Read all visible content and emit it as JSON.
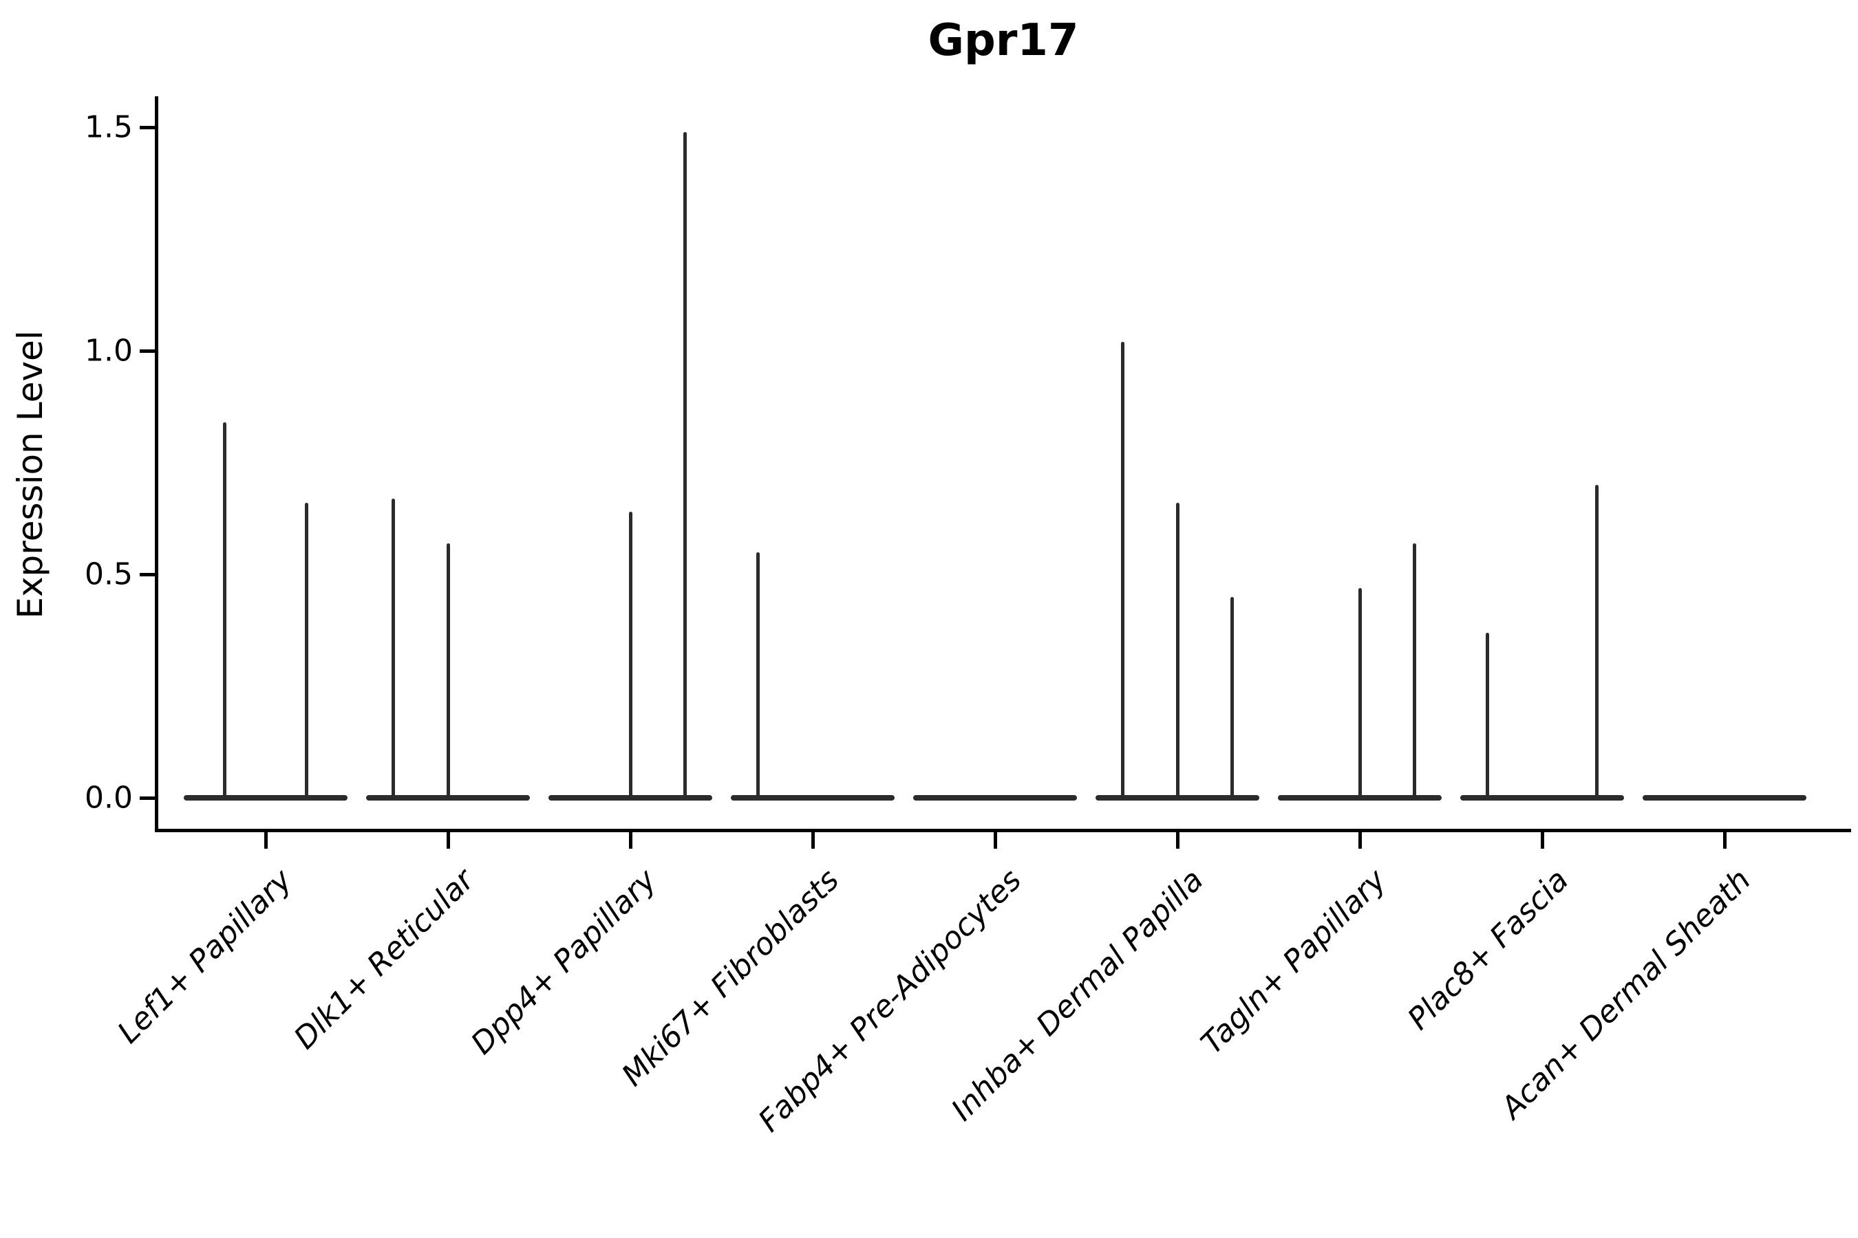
{
  "title": "Gpr17",
  "axes": {
    "ylabel": "Expression Level",
    "yticks": [
      {
        "value": 1.5,
        "label": "1.5"
      },
      {
        "value": 1.0,
        "label": "1.0"
      },
      {
        "value": 0.5,
        "label": "0.5"
      },
      {
        "value": 0.0,
        "label": "0.0"
      }
    ],
    "x_label_rotation_deg": 45,
    "x_label_style": "italic"
  },
  "colors": {
    "background": "#ffffff",
    "spine": "#000000",
    "text": "#000000",
    "violin_ink": "#2b2b2b"
  },
  "chart_data": {
    "type": "violin",
    "title": "Gpr17",
    "xlabel": "",
    "ylabel": "Expression Level",
    "ylim": [
      -0.07,
      1.57
    ],
    "grid": false,
    "legend": "none",
    "categories": [
      "Lef1+ Papillary",
      "Dlk1+ Reticular",
      "Dpp4+ Papillary",
      "Mki67+ Fibroblasts",
      "Fabp4+ Pre-Adipocytes",
      "Inhba+ Dermal Papilla",
      "Tagln+ Papillary",
      "Plac8+ Fascia",
      "Acan+ Dermal Sheath"
    ],
    "violins": [
      {
        "category": "Lef1+ Papillary",
        "spikes": [
          {
            "offset": -0.225,
            "max": 0.84
          },
          {
            "offset": 0.225,
            "max": 0.66
          }
        ]
      },
      {
        "category": "Dlk1+ Reticular",
        "spikes": [
          {
            "offset": -0.3,
            "max": 0.67
          },
          {
            "offset": 0,
            "max": 0.57
          },
          {
            "offset": 0.3,
            "max": 0
          }
        ]
      },
      {
        "category": "Dpp4+ Papillary",
        "spikes": [
          {
            "offset": -0.3,
            "max": 0
          },
          {
            "offset": 0,
            "max": 0.64
          },
          {
            "offset": 0.3,
            "max": 1.49
          }
        ]
      },
      {
        "category": "Mki67+ Fibroblasts",
        "spikes": [
          {
            "offset": -0.3,
            "max": 0.55
          },
          {
            "offset": 0,
            "max": 0
          },
          {
            "offset": 0.3,
            "max": 0
          }
        ]
      },
      {
        "category": "Fabp4+ Pre-Adipocytes",
        "spikes": [
          {
            "offset": -0.3,
            "max": 0
          },
          {
            "offset": 0,
            "max": 0
          },
          {
            "offset": 0.3,
            "max": 0
          }
        ]
      },
      {
        "category": "Inhba+ Dermal Papilla",
        "spikes": [
          {
            "offset": -0.3,
            "max": 1.02
          },
          {
            "offset": 0,
            "max": 0.66
          },
          {
            "offset": 0.3,
            "max": 0.45
          }
        ]
      },
      {
        "category": "Tagln+ Papillary",
        "spikes": [
          {
            "offset": -0.3,
            "max": 0
          },
          {
            "offset": 0,
            "max": 0.47
          },
          {
            "offset": 0.3,
            "max": 0.57
          }
        ]
      },
      {
        "category": "Plac8+ Fascia",
        "spikes": [
          {
            "offset": -0.3,
            "max": 0.37
          },
          {
            "offset": 0,
            "max": 0
          },
          {
            "offset": 0.3,
            "max": 0.7
          }
        ]
      },
      {
        "category": "Acan+ Dermal Sheath",
        "spikes": [
          {
            "offset": -0.3,
            "max": 0
          },
          {
            "offset": 0,
            "max": 0
          },
          {
            "offset": 0.3,
            "max": 0
          }
        ]
      }
    ]
  }
}
